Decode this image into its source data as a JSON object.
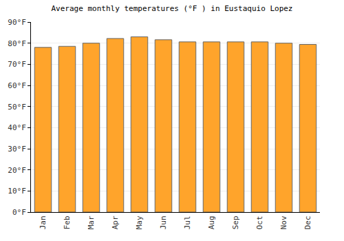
{
  "chart_data": {
    "type": "bar",
    "title": "Average monthly temperatures (°F ) in Eustaquio Lopez",
    "categories": [
      "Jan",
      "Feb",
      "Mar",
      "Apr",
      "May",
      "Jun",
      "Jul",
      "Aug",
      "Sep",
      "Oct",
      "Nov",
      "Dec"
    ],
    "values": [
      78,
      78.5,
      80,
      82.2,
      83,
      81.6,
      80.6,
      80.6,
      80.6,
      80.6,
      80,
      79.4
    ],
    "color": "#ffa42b",
    "ylim": [
      0,
      90
    ],
    "yticks": [
      {
        "value": 0,
        "label": "0°F"
      },
      {
        "value": 10,
        "label": "10°F"
      },
      {
        "value": 20,
        "label": "20°F"
      },
      {
        "value": 30,
        "label": "30°F"
      },
      {
        "value": 40,
        "label": "40°F"
      },
      {
        "value": 50,
        "label": "50°F"
      },
      {
        "value": 60,
        "label": "60°F"
      },
      {
        "value": 70,
        "label": "70°F"
      },
      {
        "value": 80,
        "label": "80°F"
      },
      {
        "value": 90,
        "label": "90°F"
      }
    ],
    "grid": true
  }
}
